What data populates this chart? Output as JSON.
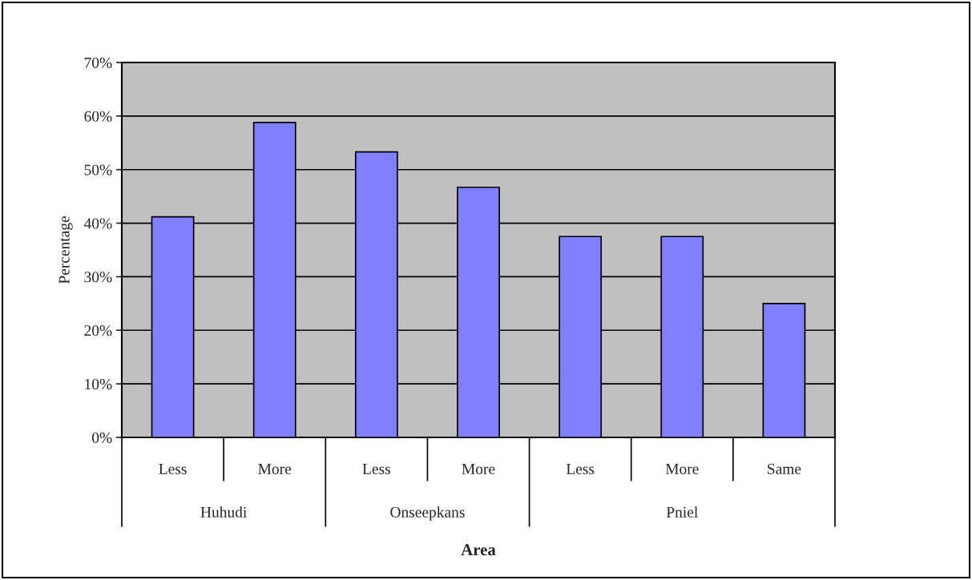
{
  "chart_data": {
    "type": "bar",
    "xlabel": "Area",
    "ylabel": "Percentage",
    "categories": [
      "Less",
      "More",
      "Less",
      "More",
      "Less",
      "More",
      "Same"
    ],
    "values": [
      41.2,
      58.8,
      53.3,
      46.7,
      37.5,
      37.5,
      25.0
    ],
    "color": "#8080ff",
    "annotations": [
      "Huhudi",
      "Onseepkans",
      "Pniel"
    ],
    "ylim": [
      0,
      70
    ],
    "yticks": [
      {
        "value": 0,
        "label": "0%"
      },
      {
        "value": 10,
        "label": "10%"
      },
      {
        "value": 20,
        "label": "20%"
      },
      {
        "value": 30,
        "label": "30%"
      },
      {
        "value": 40,
        "label": "40%"
      },
      {
        "value": 50,
        "label": "50%"
      },
      {
        "value": 60,
        "label": "60%"
      },
      {
        "value": 70,
        "label": "70%"
      }
    ],
    "grid": "y",
    "legend": false
  }
}
